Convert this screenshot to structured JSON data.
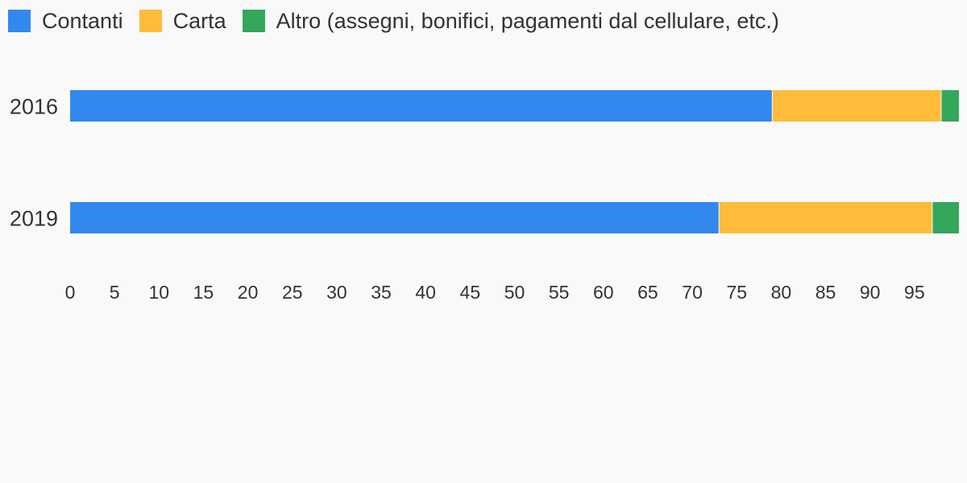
{
  "chart_data": {
    "type": "bar",
    "orientation": "horizontal",
    "stacked": true,
    "categories": [
      "2016",
      "2019"
    ],
    "series": [
      {
        "name": "Contanti",
        "color": "#3388ee",
        "values": [
          79,
          73
        ]
      },
      {
        "name": "Carta",
        "color": "#ffbb3a",
        "values": [
          19,
          24
        ]
      },
      {
        "name": "Altro (assegni, bonifici, pagamenti dal cellulare, etc.)",
        "color": "#35a75a",
        "values": [
          2,
          3
        ]
      }
    ],
    "xlim": [
      0,
      100
    ],
    "x_ticks": [
      0,
      5,
      10,
      15,
      20,
      25,
      30,
      35,
      40,
      45,
      50,
      55,
      60,
      65,
      70,
      75,
      80,
      85,
      90,
      95
    ],
    "legend_position": "top-left",
    "grid": false,
    "title": "",
    "xlabel": "",
    "ylabel": ""
  }
}
